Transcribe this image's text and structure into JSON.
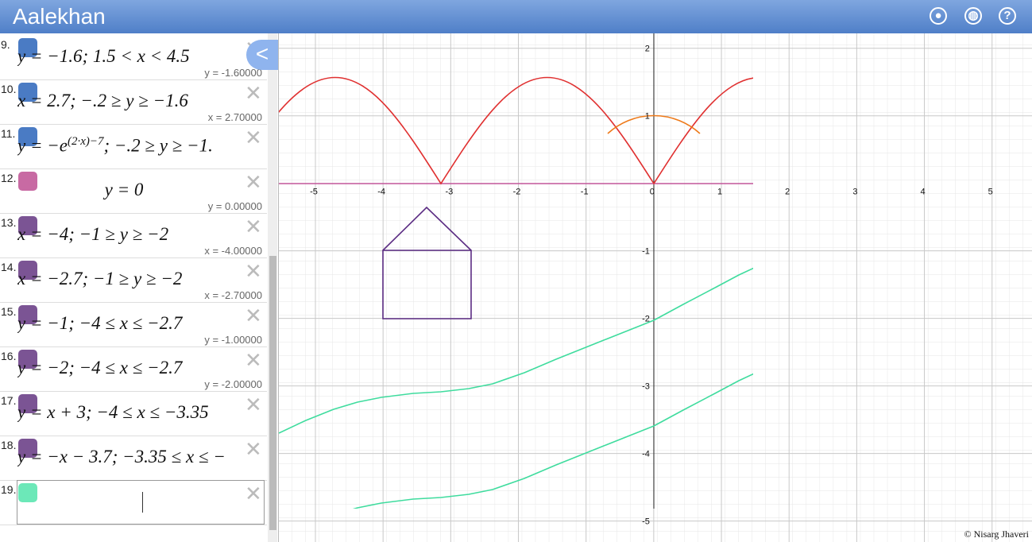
{
  "header": {
    "title": "Aalekhan"
  },
  "expressions": [
    {
      "number": "9.",
      "color": "#4a7bc4",
      "expression": "y = −1.6; 1.5 < x < 4.5",
      "value": "y = -1.60000"
    },
    {
      "number": "10.",
      "color": "#4a7bc4",
      "expression": "x = 2.7; −.2 ≥ y ≥ −1.6",
      "value": "x = 2.70000"
    },
    {
      "number": "11.",
      "color": "#4a7bc4",
      "expression": "y = −e",
      "superscript": "(2·x)−7",
      "rest": "; −.2 ≥ y ≥ −1."
    },
    {
      "number": "12.",
      "color": "#c86aa3",
      "expression": "y = 0",
      "value": "y = 0.00000"
    },
    {
      "number": "13.",
      "color": "#7b5494",
      "expression": "x = −4; −1 ≥ y ≥ −2",
      "value": "x = -4.00000"
    },
    {
      "number": "14.",
      "color": "#7b5494",
      "expression": "x = −2.7; −1 ≥ y ≥ −2",
      "value": "x = -2.70000"
    },
    {
      "number": "15.",
      "color": "#7b5494",
      "expression": "y = −1; −4 ≤ x ≤ −2.7",
      "value": "y = -1.00000"
    },
    {
      "number": "16.",
      "color": "#7b5494",
      "expression": "y = −2; −4 ≤ x ≤ −2.7",
      "value": "y = -2.00000"
    },
    {
      "number": "17.",
      "color": "#7b5494",
      "expression": "y = x + 3; −4 ≤ x ≤ −3.35"
    },
    {
      "number": "18.",
      "color": "#7b5494",
      "expression": "y = −x − 3.7; −3.35 ≤ x ≤ −"
    },
    {
      "number": "19.",
      "color": "#6ce8b8"
    }
  ],
  "graph": {
    "xlim": [
      -5.54,
      5.59
    ],
    "ylim": [
      -5.31,
      2.22
    ],
    "xticks": [
      -5,
      -4,
      -3,
      -2,
      -1,
      0,
      1,
      2,
      3,
      4,
      5
    ],
    "yticks": [
      2,
      1,
      -1,
      -2,
      -3,
      -4,
      -5
    ]
  },
  "footer": {
    "credit": "© Nisarg Jhaveri"
  }
}
